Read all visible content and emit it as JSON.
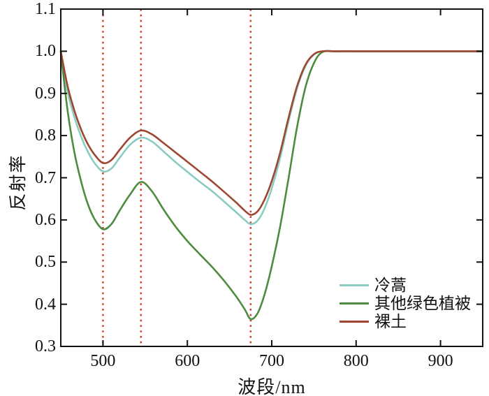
{
  "chart_data": {
    "type": "line",
    "title": "",
    "xlabel": "波段/nm",
    "ylabel": "反射率",
    "xlim": [
      450,
      950
    ],
    "ylim": [
      0.3,
      1.1
    ],
    "xticks": [
      500,
      600,
      700,
      800,
      900
    ],
    "yticks": [
      0.3,
      0.4,
      0.5,
      0.6,
      0.7,
      0.8,
      0.9,
      1.0,
      1.1
    ],
    "grid": false,
    "legend_position": "lower right",
    "axis_color": "#111111",
    "reference_lines": {
      "style": "dotted",
      "color": "#d03a2b",
      "x_values": [
        500,
        545,
        675
      ]
    },
    "x": [
      450,
      458,
      466,
      474,
      482,
      490,
      500,
      510,
      520,
      532,
      545,
      558,
      572,
      586,
      600,
      615,
      630,
      645,
      658,
      668,
      675,
      683,
      691,
      700,
      710,
      720,
      730,
      740,
      750,
      760,
      775,
      800,
      850,
      900,
      950
    ],
    "series": [
      {
        "name": "冷蒿",
        "color": "#8bccc2",
        "values": [
          1.0,
          0.905,
          0.845,
          0.798,
          0.762,
          0.735,
          0.715,
          0.722,
          0.748,
          0.778,
          0.795,
          0.786,
          0.762,
          0.737,
          0.714,
          0.69,
          0.667,
          0.641,
          0.618,
          0.6,
          0.59,
          0.598,
          0.625,
          0.675,
          0.748,
          0.835,
          0.912,
          0.965,
          0.992,
          1.0,
          1.0,
          1.0,
          1.0,
          1.0,
          1.0
        ]
      },
      {
        "name": "其他绿色植被",
        "color": "#4e8b3f",
        "values": [
          1.0,
          0.86,
          0.762,
          0.692,
          0.638,
          0.602,
          0.578,
          0.59,
          0.623,
          0.66,
          0.69,
          0.668,
          0.624,
          0.584,
          0.55,
          0.518,
          0.487,
          0.452,
          0.418,
          0.388,
          0.365,
          0.378,
          0.42,
          0.49,
          0.585,
          0.7,
          0.82,
          0.915,
          0.972,
          0.998,
          1.0,
          1.0,
          1.0,
          1.0,
          1.0
        ]
      },
      {
        "name": "裸土",
        "color": "#9d4733",
        "values": [
          1.0,
          0.918,
          0.86,
          0.815,
          0.78,
          0.755,
          0.735,
          0.742,
          0.767,
          0.795,
          0.812,
          0.803,
          0.782,
          0.76,
          0.738,
          0.714,
          0.69,
          0.664,
          0.641,
          0.622,
          0.612,
          0.62,
          0.646,
          0.692,
          0.76,
          0.843,
          0.917,
          0.968,
          0.993,
          1.0,
          1.0,
          1.0,
          1.0,
          1.0,
          1.0
        ]
      }
    ]
  }
}
